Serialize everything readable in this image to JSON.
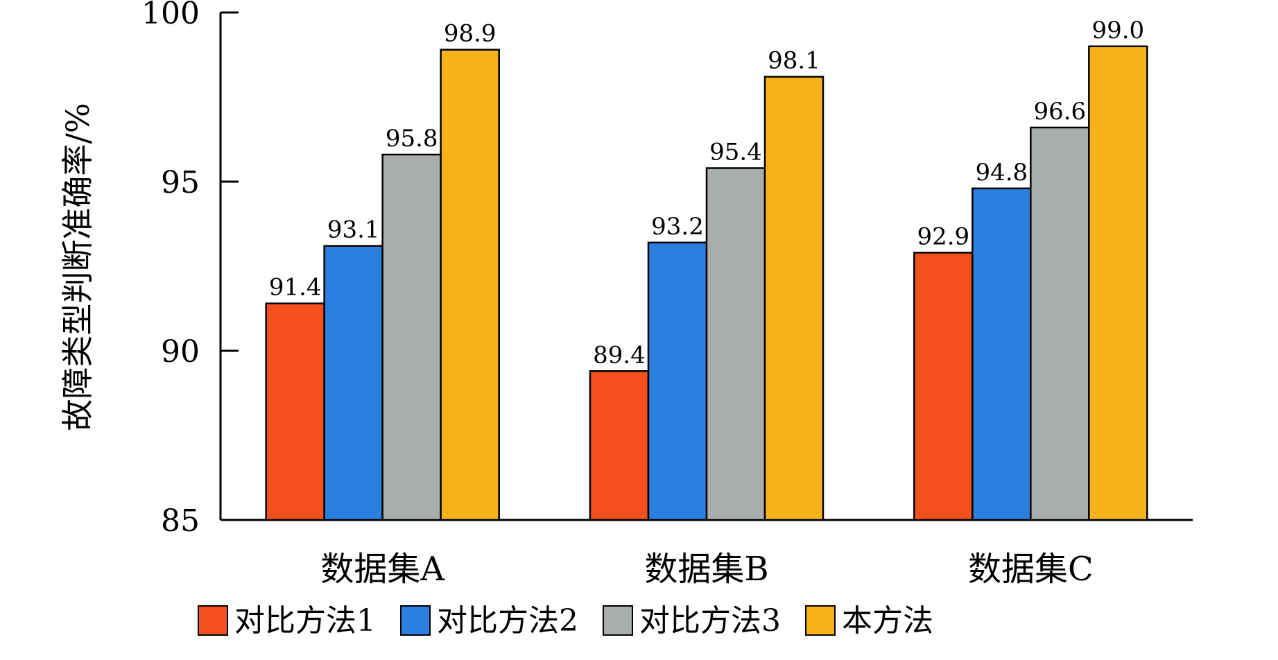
{
  "chart_data": {
    "type": "bar",
    "title": "",
    "xlabel": "",
    "ylabel": "故障类型判断准确率/%",
    "ylim": [
      85,
      100
    ],
    "yticks": [
      85,
      90,
      95,
      100
    ],
    "categories": [
      "数据集A",
      "数据集B",
      "数据集C"
    ],
    "series": [
      {
        "name": "对比方法1",
        "color": "#f4511e",
        "values": [
          91.4,
          89.4,
          92.9
        ],
        "labels": [
          "91.4",
          "89.4",
          "92.9"
        ]
      },
      {
        "name": "对比方法2",
        "color": "#2b7fdf",
        "values": [
          93.1,
          93.2,
          94.8
        ],
        "labels": [
          "93.1",
          "93.2",
          "94.8"
        ]
      },
      {
        "name": "对比方法3",
        "color": "#a9adab",
        "values": [
          95.8,
          95.4,
          96.6
        ],
        "labels": [
          "95.8",
          "95.4",
          "96.6"
        ]
      },
      {
        "name": "本方法",
        "color": "#f6b21a",
        "values": [
          98.9,
          98.1,
          99.0
        ],
        "labels": [
          "98.9",
          "98.1",
          "99.0"
        ]
      }
    ],
    "grid": false,
    "legend_position": "bottom"
  }
}
